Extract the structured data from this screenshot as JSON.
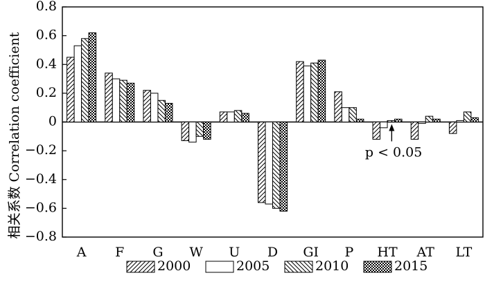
{
  "chart_data": {
    "type": "bar",
    "ylabel": "相关系数 Correlation coefficient",
    "xlabel": "",
    "ylim": [
      -0.8,
      0.8
    ],
    "yticks": [
      0.8,
      0.6,
      0.4,
      0.2,
      0,
      -0.2,
      -0.4,
      -0.6,
      -0.8
    ],
    "ytick_labels": [
      "0.8",
      "0.6",
      "0.4",
      "0.2",
      "0",
      "−0.2",
      "−0.4",
      "−0.6",
      "−0.8"
    ],
    "categories": [
      "A",
      "F",
      "G",
      "W",
      "U",
      "D",
      "GI",
      "P",
      "HT",
      "AT",
      "LT"
    ],
    "series": [
      {
        "name": "2000",
        "pattern": "diag-right",
        "values": [
          0.45,
          0.34,
          0.22,
          -0.13,
          0.07,
          -0.56,
          0.42,
          0.21,
          -0.12,
          -0.12,
          -0.08
        ]
      },
      {
        "name": "2005",
        "pattern": "plain",
        "values": [
          0.53,
          0.3,
          0.2,
          -0.14,
          0.07,
          -0.57,
          0.39,
          0.1,
          -0.04,
          -0.01,
          0.01
        ]
      },
      {
        "name": "2010",
        "pattern": "diag-left",
        "values": [
          0.58,
          0.29,
          0.15,
          -0.1,
          0.08,
          -0.6,
          0.41,
          0.1,
          0.01,
          0.04,
          0.07
        ]
      },
      {
        "name": "2015",
        "pattern": "checker",
        "values": [
          0.62,
          0.27,
          0.13,
          -0.12,
          0.06,
          -0.62,
          0.43,
          0.02,
          0.02,
          0.02,
          0.03
        ]
      }
    ],
    "annotation": {
      "text": "p < 0.05",
      "category": "HT"
    },
    "grid": false,
    "legend_position": "bottom"
  }
}
